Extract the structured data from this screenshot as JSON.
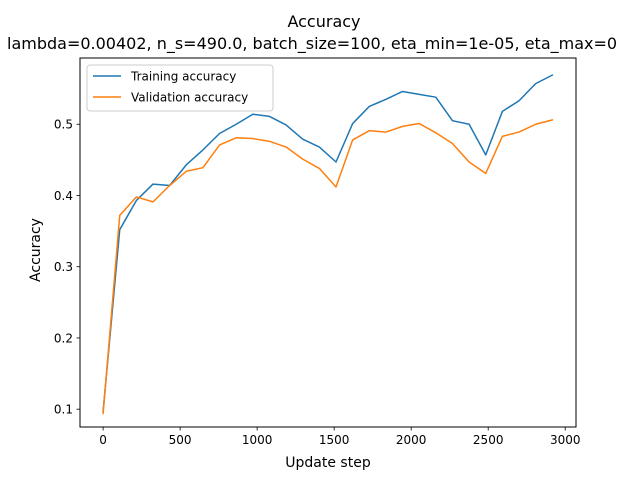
{
  "chart_data": {
    "type": "line",
    "title": "Accuracy",
    "subtitle": "lambda=0.00402, n_s=490.0, batch_size=100, eta_min=1e-05, eta_max=0",
    "xlabel": "Update step",
    "ylabel": "Accuracy",
    "xlim": [
      -150,
      3070
    ],
    "ylim": [
      0.075,
      0.593
    ],
    "xticks": [
      0,
      500,
      1000,
      1500,
      2000,
      2500,
      3000
    ],
    "yticks": [
      0.1,
      0.2,
      0.3,
      0.4,
      0.5
    ],
    "xtick_labels": [
      "0",
      "500",
      "1000",
      "1500",
      "2000",
      "2500",
      "3000"
    ],
    "ytick_labels": [
      "0.1",
      "0.2",
      "0.3",
      "0.4",
      "0.5"
    ],
    "legend_position": "top-left",
    "grid": false,
    "x": [
      0,
      108,
      216,
      324,
      432,
      540,
      648,
      756,
      864,
      972,
      1080,
      1188,
      1296,
      1404,
      1512,
      1620,
      1728,
      1836,
      1944,
      2052,
      2160,
      2268,
      2376,
      2484,
      2592,
      2700,
      2808,
      2916
    ],
    "series": [
      {
        "name": "Training accuracy",
        "color": "#1f77b4",
        "values": [
          0.097,
          0.352,
          0.393,
          0.416,
          0.414,
          0.443,
          0.464,
          0.487,
          0.5,
          0.514,
          0.511,
          0.499,
          0.479,
          0.468,
          0.447,
          0.501,
          0.525,
          0.535,
          0.546,
          0.542,
          0.538,
          0.505,
          0.5,
          0.457,
          0.518,
          0.533,
          0.557,
          0.569
        ]
      },
      {
        "name": "Validation accuracy",
        "color": "#ff7f0e",
        "values": [
          0.094,
          0.372,
          0.398,
          0.391,
          0.414,
          0.434,
          0.439,
          0.471,
          0.481,
          0.48,
          0.476,
          0.468,
          0.451,
          0.438,
          0.412,
          0.478,
          0.491,
          0.489,
          0.497,
          0.501,
          0.488,
          0.473,
          0.447,
          0.431,
          0.483,
          0.489,
          0.5,
          0.506
        ]
      }
    ]
  }
}
